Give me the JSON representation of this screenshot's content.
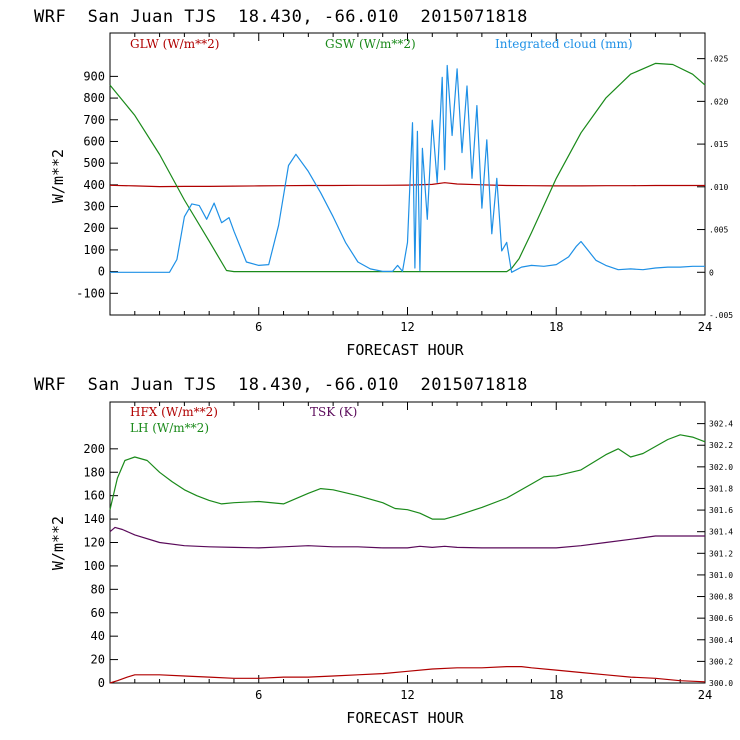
{
  "chart_data": [
    {
      "type": "line",
      "title": "WRF  San Juan TJS  18.430, -66.010  2015071818",
      "xlabel": "FORECAST HOUR",
      "ylabel": "W/m**2",
      "xlim": [
        0,
        24
      ],
      "ylim": [
        -200,
        1100
      ],
      "xticks": [
        "6",
        "12",
        "18",
        "24"
      ],
      "yticks": [
        "-100",
        "0",
        "100",
        "200",
        "300",
        "400",
        "500",
        "600",
        "700",
        "800",
        "900"
      ],
      "y2lim": [
        -0.005,
        0.028
      ],
      "y2ticks": [
        "-.005",
        "0",
        ".005",
        ".010",
        ".015",
        ".020",
        ".025"
      ],
      "legend_placement": "top, inside plot",
      "grid": false,
      "series": [
        {
          "name": "GLW (W/m**2)",
          "color": "#b00000",
          "axis": "left",
          "x": [
            0,
            1,
            2,
            3,
            4,
            5,
            6,
            7,
            8,
            9,
            10,
            11,
            12,
            13,
            13.5,
            14,
            15,
            16,
            17,
            18,
            19,
            20,
            21,
            22,
            23,
            24
          ],
          "y": [
            398,
            395,
            392,
            393,
            393,
            394,
            395,
            396,
            397,
            397,
            398,
            398,
            399,
            402,
            410,
            404,
            400,
            397,
            396,
            395,
            395,
            396,
            396,
            397,
            397,
            397
          ]
        },
        {
          "name": "GSW (W/m**2)",
          "color": "#1a8a1a",
          "axis": "left",
          "x": [
            0,
            1,
            2,
            3,
            4,
            4.7,
            5,
            6,
            8,
            10,
            12,
            14,
            16,
            16.2,
            16.5,
            17,
            18,
            19,
            20,
            21,
            22,
            22.7,
            23.5,
            24
          ],
          "y": [
            860,
            720,
            540,
            330,
            140,
            5,
            0,
            0,
            0,
            0,
            0,
            0,
            0,
            15,
            60,
            180,
            430,
            640,
            800,
            910,
            960,
            955,
            910,
            860
          ]
        },
        {
          "name": "Integrated cloud (mm)",
          "color": "#1e90e6",
          "axis": "right",
          "x": [
            0,
            1.5,
            2.4,
            2.7,
            3,
            3.3,
            3.6,
            3.9,
            4.2,
            4.5,
            4.8,
            5,
            5.5,
            6,
            6.4,
            6.8,
            7.2,
            7.5,
            8,
            8.5,
            9,
            9.5,
            10,
            10.5,
            11,
            11.4,
            11.6,
            11.8,
            12,
            12.2,
            12.3,
            12.4,
            12.5,
            12.6,
            12.8,
            13,
            13.2,
            13.4,
            13.5,
            13.6,
            13.8,
            14,
            14.2,
            14.4,
            14.6,
            14.8,
            15,
            15.2,
            15.4,
            15.6,
            15.8,
            16,
            16.2,
            16.6,
            17,
            17.5,
            18,
            18.5,
            18.8,
            19,
            19.3,
            19.6,
            20,
            20.5,
            21,
            21.5,
            22,
            22.5,
            23,
            23.5,
            24
          ],
          "y": [
            0,
            0,
            0,
            0.0015,
            0.0065,
            0.008,
            0.0078,
            0.0062,
            0.0081,
            0.0058,
            0.0064,
            0.0048,
            0.0012,
            0.0008,
            0.0009,
            0.0055,
            0.0125,
            0.0138,
            0.0118,
            0.0093,
            0.0065,
            0.0035,
            0.0012,
            0.0004,
            0.0001,
            0.0001,
            0.0008,
            0.0001,
            0.0035,
            0.0175,
            0.0005,
            0.0165,
            0.0002,
            0.0145,
            0.0062,
            0.0178,
            0.0105,
            0.0228,
            0.012,
            0.0242,
            0.016,
            0.0238,
            0.014,
            0.0218,
            0.011,
            0.0195,
            0.0075,
            0.0155,
            0.0045,
            0.011,
            0.0025,
            0.0035,
            0,
            0.0006,
            0.0008,
            0.0007,
            0.0009,
            0.0018,
            0.003,
            0.0036,
            0.0025,
            0.0014,
            0.0008,
            0.0003,
            0.0004,
            0.0003,
            0.0005,
            0.0006,
            0.0006,
            0.0007,
            0.0007
          ]
        }
      ]
    },
    {
      "type": "line",
      "title": "WRF  San Juan TJS  18.430, -66.010  2015071818",
      "xlabel": "FORECAST HOUR",
      "ylabel": "W/m**2",
      "xlim": [
        0,
        24
      ],
      "ylim": [
        0,
        240
      ],
      "xticks": [
        "6",
        "12",
        "18",
        "24"
      ],
      "yticks": [
        "0",
        "20",
        "40",
        "60",
        "80",
        "100",
        "120",
        "140",
        "160",
        "180",
        "200"
      ],
      "y2lim": [
        300.0,
        302.6
      ],
      "y2ticks": [
        "300.0",
        "300.2",
        "300.4",
        "300.6",
        "300.8",
        "301.0",
        "301.2",
        "301.4",
        "301.6",
        "301.8",
        "302.0",
        "302.2",
        "302.4"
      ],
      "legend_placement": "top, inside plot",
      "grid": false,
      "series": [
        {
          "name": "HFX (W/m**2)",
          "color": "#b00000",
          "axis": "left",
          "x": [
            0,
            0.3,
            0.7,
            1,
            1.5,
            2,
            3,
            4,
            5,
            6,
            7,
            8,
            9,
            10,
            11,
            12,
            13,
            14,
            15,
            16,
            16.6,
            17,
            18,
            19,
            20,
            21,
            22,
            23,
            24
          ],
          "y": [
            0,
            2,
            5,
            7,
            7,
            7,
            6,
            5,
            4,
            4,
            5,
            5,
            6,
            7,
            8,
            10,
            12,
            13,
            13,
            14,
            14,
            13,
            11,
            9,
            7,
            5,
            4,
            2,
            1
          ]
        },
        {
          "name": "LH  (W/m**2)",
          "color": "#1a8a1a",
          "axis": "left",
          "x": [
            0,
            0.3,
            0.6,
            1,
            1.5,
            2,
            2.5,
            3,
            3.5,
            4,
            4.5,
            5,
            6,
            7,
            8,
            8.5,
            9,
            10,
            11,
            11.5,
            12,
            12.5,
            13,
            13.5,
            14,
            15,
            16,
            17,
            17.5,
            18,
            19,
            20,
            20.5,
            21,
            21.5,
            22,
            22.5,
            23,
            23.5,
            24
          ],
          "y": [
            148,
            175,
            190,
            193,
            190,
            180,
            172,
            165,
            160,
            156,
            153,
            154,
            155,
            153,
            162,
            166,
            165,
            160,
            154,
            149,
            148,
            145,
            140,
            140,
            143,
            150,
            158,
            170,
            176,
            177,
            182,
            195,
            200,
            193,
            196,
            202,
            208,
            212,
            210,
            206
          ]
        },
        {
          "name": "TSK (K)",
          "color": "#5a0a5a",
          "axis": "right",
          "x": [
            0,
            0.2,
            0.5,
            1,
            2,
            3,
            4,
            5,
            6,
            7,
            8,
            9,
            10,
            11,
            12,
            12.5,
            13,
            13.5,
            14,
            15,
            16,
            17,
            18,
            19,
            20,
            21,
            22,
            23,
            24
          ],
          "y": [
            301.4,
            301.44,
            301.42,
            301.37,
            301.3,
            301.27,
            301.26,
            301.255,
            301.25,
            301.26,
            301.27,
            301.26,
            301.26,
            301.25,
            301.25,
            301.265,
            301.255,
            301.265,
            301.255,
            301.25,
            301.25,
            301.25,
            301.25,
            301.27,
            301.3,
            301.33,
            301.36,
            301.36,
            301.36
          ]
        }
      ]
    }
  ]
}
